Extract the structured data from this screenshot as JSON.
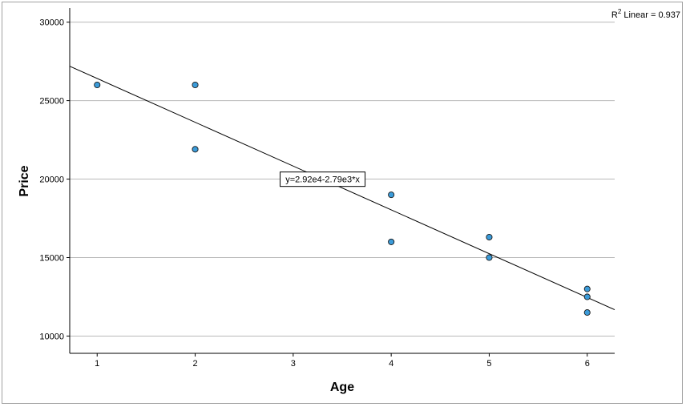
{
  "chart_data": {
    "type": "scatter",
    "title": "",
    "xlabel": "Age",
    "ylabel": "Price",
    "xlim": [
      0.72,
      6.28
    ],
    "ylim": [
      8900,
      30900
    ],
    "xticks": [
      1,
      2,
      3,
      4,
      5,
      6
    ],
    "yticks": [
      10000,
      15000,
      20000,
      25000,
      30000
    ],
    "grid": "horizontal",
    "point_color": "#3b9bd9",
    "points": [
      {
        "x": 1,
        "y": 26000
      },
      {
        "x": 2,
        "y": 26000
      },
      {
        "x": 2,
        "y": 21900
      },
      {
        "x": 4,
        "y": 19000
      },
      {
        "x": 4,
        "y": 16000
      },
      {
        "x": 5,
        "y": 16300
      },
      {
        "x": 5,
        "y": 15000
      },
      {
        "x": 6,
        "y": 13000
      },
      {
        "x": 6,
        "y": 12500
      },
      {
        "x": 6,
        "y": 11500
      }
    ],
    "fit": {
      "intercept": 29200,
      "slope": -2790,
      "label": "y=2.92e4-2.79e3*x",
      "label_at_x": 3.3
    },
    "r2": {
      "prefix": "R",
      "sup": "2",
      "text": " Linear = 0.937"
    }
  }
}
